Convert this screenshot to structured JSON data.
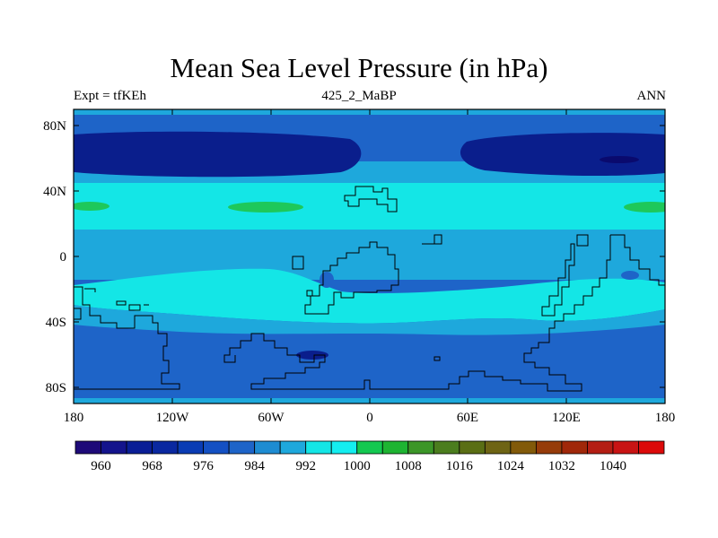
{
  "header": {
    "title": "Mean Sea Level Pressure (in hPa)",
    "left": "Expt = tfKEh",
    "center": "425_2_MaBP",
    "right": "ANN"
  },
  "map": {
    "lat_ticks": [
      "80N",
      "40N",
      "0",
      "40S",
      "80S"
    ],
    "lon_ticks": [
      "180",
      "120W",
      "60W",
      "0",
      "60E",
      "120E",
      "180"
    ],
    "colors": {
      "deep": "#0a1e8c",
      "mid": "#1e64c8",
      "light": "#1ea8dc",
      "cyan": "#14e6e6",
      "green": "#1ec85a",
      "coast": "#000000"
    }
  },
  "colorbar": {
    "colors": [
      "#1e0a78",
      "#14148c",
      "#0a1e96",
      "#0a28a0",
      "#0a3cb4",
      "#1450c3",
      "#1e64c8",
      "#1e8cd2",
      "#1ea8dc",
      "#14e6e6",
      "#14eef0",
      "#14c850",
      "#1eb432",
      "#3c9628",
      "#4b7d1e",
      "#5a6e14",
      "#6e6414",
      "#825a0a",
      "#963c0a",
      "#a0280a",
      "#b41e14",
      "#c81414",
      "#dc0a0a"
    ],
    "labels": [
      "960",
      "968",
      "976",
      "984",
      "992",
      "1000",
      "1008",
      "1016",
      "1024",
      "1032",
      "1040"
    ]
  }
}
